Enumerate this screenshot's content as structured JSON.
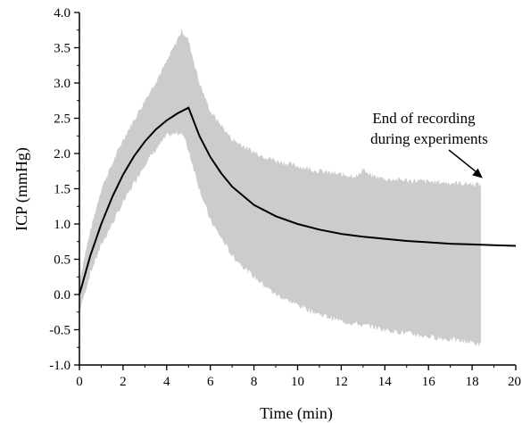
{
  "chart_data": {
    "type": "line",
    "xlabel": "Time (min)",
    "ylabel": "ICP (mmHg)",
    "xlim": [
      0,
      20
    ],
    "ylim": [
      -1.0,
      4.0
    ],
    "x_ticks": [
      "0",
      "2",
      "4",
      "6",
      "8",
      "10",
      "12",
      "14",
      "16",
      "18",
      "20"
    ],
    "y_ticks": [
      "-1.0",
      "-0.5",
      "0.0",
      "0.5",
      "1.0",
      "1.5",
      "2.0",
      "2.5",
      "3.0",
      "3.5",
      "4.0"
    ],
    "grid": false,
    "legend": "none",
    "series": [
      {
        "style": "black line",
        "x": [
          0,
          0.5,
          1,
          1.5,
          2,
          2.5,
          3,
          3.5,
          4,
          4.5,
          5,
          5.5,
          6,
          6.5,
          7,
          8,
          9,
          10,
          11,
          12,
          13,
          14,
          15,
          16,
          17,
          18,
          19,
          20
        ],
        "y": [
          0.0,
          0.55,
          1.0,
          1.38,
          1.7,
          1.96,
          2.17,
          2.34,
          2.47,
          2.57,
          2.65,
          2.25,
          1.95,
          1.72,
          1.53,
          1.27,
          1.11,
          1.0,
          0.92,
          0.86,
          0.82,
          0.79,
          0.76,
          0.74,
          0.72,
          0.71,
          0.7,
          0.69
        ]
      },
      {
        "style": "grey shaded band (range)",
        "x": [
          0,
          0.5,
          1,
          2,
          3,
          4,
          4.7,
          5,
          5.5,
          6,
          7,
          8,
          9,
          10,
          11,
          12,
          12.8,
          13,
          13.2,
          14,
          16,
          18,
          18.4
        ],
        "y_upper": [
          0.2,
          0.9,
          1.5,
          2.2,
          2.75,
          3.3,
          3.75,
          3.6,
          3.0,
          2.6,
          2.2,
          2.02,
          1.9,
          1.82,
          1.75,
          1.7,
          1.68,
          1.8,
          1.7,
          1.64,
          1.6,
          1.57,
          1.56
        ],
        "y_lower": [
          -0.25,
          0.3,
          0.7,
          1.3,
          1.85,
          2.25,
          2.3,
          2.05,
          1.5,
          1.05,
          0.55,
          0.25,
          0.0,
          -0.15,
          -0.28,
          -0.38,
          -0.42,
          -0.45,
          -0.44,
          -0.5,
          -0.6,
          -0.68,
          -0.72
        ]
      }
    ],
    "annotations": [
      {
        "lines": [
          "End of recording",
          "during experiments"
        ],
        "arrow_to": {
          "x": 18.4,
          "y": 1.6
        }
      }
    ]
  }
}
